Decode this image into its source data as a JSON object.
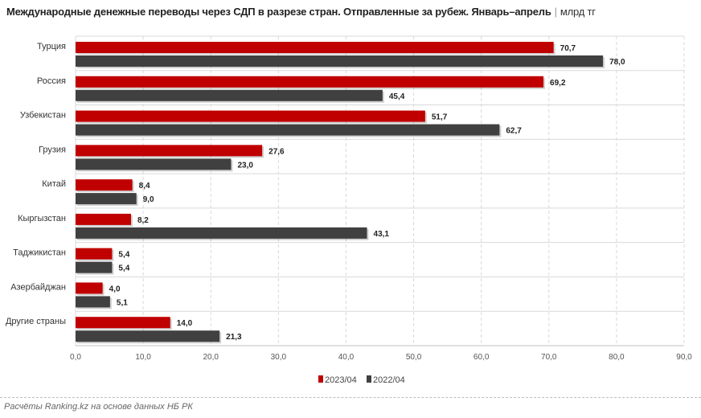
{
  "title": "Международные денежные переводы через СДП в разрезе стран. Отправленные за рубеж. Январь–апрель",
  "unit": "млрд тг",
  "footer": "Расчёты Ranking.kz на основе данных НБ РК",
  "chart_data": {
    "type": "bar",
    "orientation": "horizontal",
    "categories": [
      "Турция",
      "Россия",
      "Узбекистан",
      "Грузия",
      "Китай",
      "Кыргызстан",
      "Таджикистан",
      "Азербайджан",
      "Другие страны"
    ],
    "series": [
      {
        "name": "2023/04",
        "color": "#c00000",
        "values": [
          70.7,
          69.2,
          51.7,
          27.6,
          8.4,
          8.2,
          5.4,
          4.0,
          14.0
        ]
      },
      {
        "name": "2022/04",
        "color": "#404040",
        "values": [
          78.0,
          45.4,
          62.7,
          23.0,
          9.0,
          43.1,
          5.4,
          5.1,
          21.3
        ]
      }
    ],
    "xlim": [
      0,
      90
    ],
    "xticks": [
      0,
      10,
      20,
      30,
      40,
      50,
      60,
      70,
      80,
      90
    ],
    "xtick_labels": [
      "0,0",
      "10,0",
      "20,0",
      "30,0",
      "40,0",
      "50,0",
      "60,0",
      "70,0",
      "80,0",
      "90,0"
    ],
    "grid": true,
    "legend_position": "bottom"
  }
}
